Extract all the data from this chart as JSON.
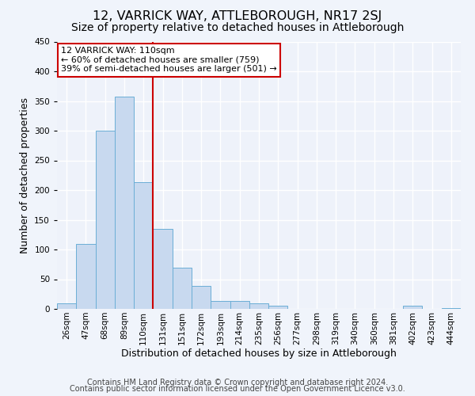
{
  "title": "12, VARRICK WAY, ATTLEBOROUGH, NR17 2SJ",
  "subtitle": "Size of property relative to detached houses in Attleborough",
  "xlabel": "Distribution of detached houses by size in Attleborough",
  "ylabel": "Number of detached properties",
  "bar_labels": [
    "26sqm",
    "47sqm",
    "68sqm",
    "89sqm",
    "110sqm",
    "131sqm",
    "151sqm",
    "172sqm",
    "193sqm",
    "214sqm",
    "235sqm",
    "256sqm",
    "277sqm",
    "298sqm",
    "319sqm",
    "340sqm",
    "360sqm",
    "381sqm",
    "402sqm",
    "423sqm",
    "444sqm"
  ],
  "bar_values": [
    9,
    109,
    300,
    358,
    213,
    135,
    70,
    39,
    14,
    13,
    9,
    6,
    0,
    0,
    0,
    0,
    0,
    0,
    5,
    0,
    2
  ],
  "bar_color": "#c8d9ef",
  "bar_edge_color": "#6baed6",
  "vline_color": "#cc0000",
  "annotation_text": "12 VARRICK WAY: 110sqm\n← 60% of detached houses are smaller (759)\n39% of semi-detached houses are larger (501) →",
  "annotation_box_facecolor": "#ffffff",
  "annotation_box_edgecolor": "#cc0000",
  "ylim": [
    0,
    450
  ],
  "yticks": [
    0,
    50,
    100,
    150,
    200,
    250,
    300,
    350,
    400,
    450
  ],
  "footer_line1": "Contains HM Land Registry data © Crown copyright and database right 2024.",
  "footer_line2": "Contains public sector information licensed under the Open Government Licence v3.0.",
  "bg_color": "#f0f4fb",
  "plot_bg_color": "#eef2fa",
  "grid_color": "#ffffff",
  "title_fontsize": 11.5,
  "subtitle_fontsize": 10,
  "axis_label_fontsize": 9,
  "tick_fontsize": 7.5,
  "annotation_fontsize": 8,
  "footer_fontsize": 7
}
